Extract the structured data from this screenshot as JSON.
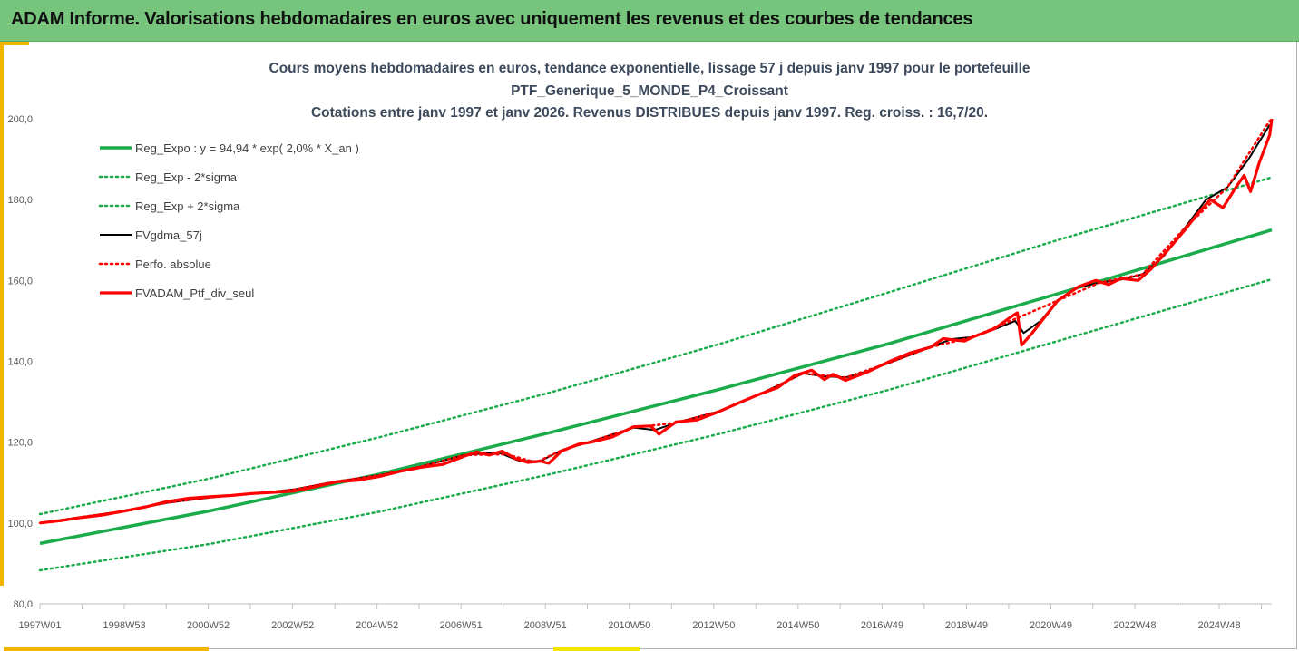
{
  "header": {
    "title": "ADAM Informe. Valorisations hebdomadaires en euros avec uniquement les revenus et des courbes de tendances"
  },
  "colors": {
    "header_bg": "#77c47c",
    "accent": "#f2b600",
    "trend_green": "#1aab4b",
    "smoothed_black": "#000000",
    "perf_red": "#ff0000"
  },
  "chart_data": {
    "type": "line",
    "title_lines": [
      "Cours moyens hebdomadaires  en euros, tendance exponentielle, lissage 57 j depuis janv 1997 pour le portefeuille",
      "PTF_Generique_5_MONDE_P4_Croissant",
      "Cotations entre janv 1997 et janv 2026. Revenus DISTRIBUES depuis janv 1997. Reg. croiss. : 16,7/20."
    ],
    "xlabel": "",
    "ylabel": "",
    "ylim": [
      80,
      205
    ],
    "yticks": [
      "80,0",
      "100,0",
      "120,0",
      "140,0",
      "160,0",
      "180,0",
      "200,0"
    ],
    "xlim": [
      1997.0,
      2026.05
    ],
    "xticks": [
      {
        "label": "1997W01",
        "x": 1997.0
      },
      {
        "label": "1998W53",
        "x": 1998.99
      },
      {
        "label": "2000W52",
        "x": 2000.97
      },
      {
        "label": "2002W52",
        "x": 2002.96
      },
      {
        "label": "2004W52",
        "x": 2004.95
      },
      {
        "label": "2006W51",
        "x": 2006.93
      },
      {
        "label": "2008W51",
        "x": 2008.92
      },
      {
        "label": "2010W50",
        "x": 2010.9
      },
      {
        "label": "2012W50",
        "x": 2012.89
      },
      {
        "label": "2014W50",
        "x": 2014.88
      },
      {
        "label": "2016W49",
        "x": 2016.86
      },
      {
        "label": "2018W49",
        "x": 2018.85
      },
      {
        "label": "2020W49",
        "x": 2020.84
      },
      {
        "label": "2022W48",
        "x": 2022.82
      },
      {
        "label": "2024W48",
        "x": 2024.81
      }
    ],
    "grid": false,
    "legend_placement": "top-left",
    "series": [
      {
        "name": "Reg_Expo : y = 94,94 * exp( 2,0% *  X_an )",
        "style": "solid-thick",
        "color": "#1aab4b",
        "points": [
          [
            1997.0,
            94.94
          ],
          [
            2001.0,
            103.0
          ],
          [
            2005.0,
            112.1
          ],
          [
            2009.0,
            122.3
          ],
          [
            2013.0,
            133.0
          ],
          [
            2017.0,
            144.3
          ],
          [
            2021.0,
            156.7
          ],
          [
            2026.05,
            172.5
          ]
        ]
      },
      {
        "name": "Reg_Exp - 2*sigma",
        "style": "dotted",
        "color": "#1aab4b",
        "points": [
          [
            1997.0,
            88.3
          ],
          [
            2001.0,
            94.8
          ],
          [
            2005.0,
            102.8
          ],
          [
            2009.0,
            112.0
          ],
          [
            2013.0,
            122.0
          ],
          [
            2017.0,
            132.9
          ],
          [
            2021.0,
            145.0
          ],
          [
            2026.05,
            160.3
          ]
        ]
      },
      {
        "name": "Reg_Exp + 2*sigma",
        "style": "dotted",
        "color": "#1aab4b",
        "points": [
          [
            1997.0,
            102.2
          ],
          [
            2001.0,
            111.0
          ],
          [
            2005.0,
            121.2
          ],
          [
            2009.0,
            132.2
          ],
          [
            2013.0,
            144.2
          ],
          [
            2017.0,
            157.0
          ],
          [
            2021.0,
            170.0
          ],
          [
            2026.05,
            185.5
          ]
        ]
      },
      {
        "name": "FVgdma_57j",
        "style": "solid",
        "color": "#000000",
        "points": [
          [
            1997.0,
            100.0
          ],
          [
            1998.0,
            101.5
          ],
          [
            1999.0,
            103.0
          ],
          [
            2000.0,
            105.0
          ],
          [
            2001.0,
            106.3
          ],
          [
            2002.0,
            107.2
          ],
          [
            2003.0,
            108.3
          ],
          [
            2004.0,
            110.3
          ],
          [
            2005.0,
            111.8
          ],
          [
            2006.0,
            114.0
          ],
          [
            2007.0,
            116.8
          ],
          [
            2007.8,
            117.5
          ],
          [
            2008.3,
            115.4
          ],
          [
            2008.8,
            115.3
          ],
          [
            2009.3,
            118.0
          ],
          [
            2010.0,
            120.2
          ],
          [
            2011.0,
            123.6
          ],
          [
            2011.5,
            123.0
          ],
          [
            2012.0,
            124.8
          ],
          [
            2013.0,
            127.6
          ],
          [
            2014.0,
            132.0
          ],
          [
            2014.5,
            134.5
          ],
          [
            2015.0,
            137.0
          ],
          [
            2015.5,
            136.3
          ],
          [
            2016.0,
            136.0
          ],
          [
            2016.5,
            137.5
          ],
          [
            2017.0,
            139.5
          ],
          [
            2018.0,
            143.5
          ],
          [
            2018.5,
            145.5
          ],
          [
            2019.0,
            146.0
          ],
          [
            2019.6,
            148.3
          ],
          [
            2020.0,
            150.0
          ],
          [
            2020.2,
            147.0
          ],
          [
            2020.6,
            150.0
          ],
          [
            2021.0,
            155.0
          ],
          [
            2021.5,
            158.4
          ],
          [
            2022.0,
            159.5
          ],
          [
            2022.5,
            160.2
          ],
          [
            2023.0,
            161.5
          ],
          [
            2023.5,
            166.0
          ],
          [
            2024.0,
            173.0
          ],
          [
            2024.5,
            180.0
          ],
          [
            2025.0,
            183.0
          ],
          [
            2025.5,
            190.0
          ],
          [
            2026.0,
            198.5
          ]
        ]
      },
      {
        "name": "Perfo. absolue",
        "style": "dotted",
        "color": "#ff0000",
        "points": [
          [
            1997.0,
            100.0
          ],
          [
            1998.0,
            101.5
          ],
          [
            1999.0,
            103.0
          ],
          [
            2000.0,
            105.0
          ],
          [
            2001.0,
            106.3
          ],
          [
            2002.0,
            107.2
          ],
          [
            2003.0,
            108.3
          ],
          [
            2004.0,
            110.3
          ],
          [
            2005.0,
            111.8
          ],
          [
            2006.0,
            114.0
          ],
          [
            2007.0,
            116.8
          ],
          [
            2008.0,
            117.0
          ],
          [
            2008.7,
            115.0
          ],
          [
            2009.3,
            118.0
          ],
          [
            2010.0,
            120.2
          ],
          [
            2011.0,
            123.6
          ],
          [
            2012.0,
            124.8
          ],
          [
            2013.0,
            127.6
          ],
          [
            2014.0,
            132.0
          ],
          [
            2015.0,
            137.0
          ],
          [
            2016.0,
            136.0
          ],
          [
            2017.0,
            139.5
          ],
          [
            2018.0,
            143.5
          ],
          [
            2019.0,
            146.0
          ],
          [
            2020.0,
            150.5
          ],
          [
            2021.0,
            155.0
          ],
          [
            2022.0,
            159.5
          ],
          [
            2023.0,
            161.5
          ],
          [
            2024.0,
            173.0
          ],
          [
            2025.0,
            183.0
          ],
          [
            2026.0,
            199.5
          ]
        ]
      },
      {
        "name": "FVADAM_Ptf_div_seul",
        "style": "solid-thick",
        "color": "#ff0000",
        "points": [
          [
            1997.0,
            100.0
          ],
          [
            1997.5,
            100.6
          ],
          [
            1998.0,
            101.4
          ],
          [
            1998.5,
            102.0
          ],
          [
            1999.0,
            103.0
          ],
          [
            1999.5,
            104.0
          ],
          [
            2000.0,
            105.3
          ],
          [
            2000.5,
            106.1
          ],
          [
            2001.0,
            106.5
          ],
          [
            2001.5,
            106.8
          ],
          [
            2002.0,
            107.3
          ],
          [
            2002.5,
            107.6
          ],
          [
            2003.0,
            107.9
          ],
          [
            2003.5,
            109.0
          ],
          [
            2004.0,
            110.2
          ],
          [
            2004.5,
            110.6
          ],
          [
            2005.0,
            111.5
          ],
          [
            2005.5,
            112.8
          ],
          [
            2006.0,
            113.8
          ],
          [
            2006.5,
            114.5
          ],
          [
            2007.0,
            116.5
          ],
          [
            2007.3,
            117.6
          ],
          [
            2007.6,
            116.8
          ],
          [
            2007.9,
            117.8
          ],
          [
            2008.2,
            116.0
          ],
          [
            2008.5,
            115.0
          ],
          [
            2008.8,
            115.3
          ],
          [
            2009.0,
            114.8
          ],
          [
            2009.3,
            117.8
          ],
          [
            2009.7,
            119.5
          ],
          [
            2010.0,
            120.0
          ],
          [
            2010.5,
            121.3
          ],
          [
            2011.0,
            123.8
          ],
          [
            2011.4,
            124.0
          ],
          [
            2011.6,
            122.0
          ],
          [
            2012.0,
            125.0
          ],
          [
            2012.5,
            125.5
          ],
          [
            2013.0,
            127.5
          ],
          [
            2013.5,
            129.8
          ],
          [
            2014.0,
            132.0
          ],
          [
            2014.4,
            133.5
          ],
          [
            2014.8,
            136.5
          ],
          [
            2015.2,
            137.8
          ],
          [
            2015.5,
            135.5
          ],
          [
            2015.7,
            136.8
          ],
          [
            2016.0,
            135.3
          ],
          [
            2016.5,
            137.3
          ],
          [
            2017.0,
            139.8
          ],
          [
            2017.5,
            142.0
          ],
          [
            2018.0,
            143.5
          ],
          [
            2018.3,
            145.6
          ],
          [
            2018.8,
            145.0
          ],
          [
            2019.0,
            146.0
          ],
          [
            2019.5,
            148.0
          ],
          [
            2019.9,
            151.0
          ],
          [
            2020.05,
            152.0
          ],
          [
            2020.15,
            144.0
          ],
          [
            2020.4,
            147.0
          ],
          [
            2020.7,
            151.0
          ],
          [
            2021.0,
            155.0
          ],
          [
            2021.5,
            158.5
          ],
          [
            2021.9,
            160.0
          ],
          [
            2022.2,
            159.0
          ],
          [
            2022.5,
            160.5
          ],
          [
            2022.9,
            160.0
          ],
          [
            2023.2,
            162.8
          ],
          [
            2023.6,
            167.5
          ],
          [
            2024.0,
            172.5
          ],
          [
            2024.3,
            176.5
          ],
          [
            2024.6,
            180.0
          ],
          [
            2024.9,
            178.0
          ],
          [
            2025.2,
            183.0
          ],
          [
            2025.4,
            186.0
          ],
          [
            2025.55,
            182.0
          ],
          [
            2025.75,
            189.0
          ],
          [
            2026.0,
            196.0
          ],
          [
            2026.05,
            200.0
          ]
        ]
      }
    ]
  }
}
